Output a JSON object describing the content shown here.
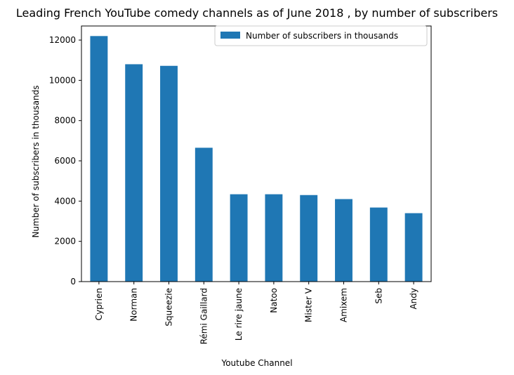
{
  "chart_data": {
    "type": "bar",
    "title": "Leading French YouTube comedy channels as of June 2018 , by number of subscribers",
    "xlabel": "Youtube Channel",
    "ylabel": "Number of subscribers in thousands",
    "categories": [
      "Cyprien",
      "Norman",
      "Squeezie",
      "Rémi Gaillard",
      "Le rire jaune",
      "Natoo",
      "Mister V",
      "Amixem",
      "Seb",
      "Andy"
    ],
    "series": [
      {
        "name": "Number of subscribers in thousands",
        "values": [
          12200,
          10800,
          10720,
          6650,
          4340,
          4340,
          4300,
          4100,
          3680,
          3400
        ],
        "color": "#1f77b4"
      }
    ],
    "ylim": [
      0,
      12700
    ],
    "yticks": [
      0,
      2000,
      4000,
      6000,
      8000,
      10000,
      12000
    ],
    "grid": false,
    "legend_position": "top-right"
  }
}
